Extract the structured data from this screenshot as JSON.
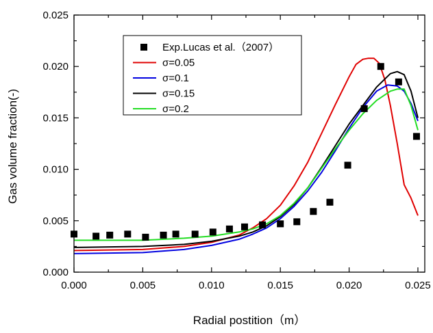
{
  "chart_data": {
    "type": "line",
    "title": "",
    "xlabel": "Radial postition（m）",
    "ylabel": "Gas volume fraction(-)",
    "xlim": [
      0.0,
      0.0255
    ],
    "ylim": [
      0.0,
      0.025
    ],
    "x_ticks": [
      "0.000",
      "0.005",
      "0.010",
      "0.015",
      "0.020",
      "0.025"
    ],
    "y_ticks": [
      "0.000",
      "0.005",
      "0.010",
      "0.015",
      "0.020",
      "0.025"
    ],
    "legend_position": "top-left",
    "scatter_series": {
      "name": "Exp.Lucas et al.（2007）",
      "color": "#000000",
      "x": [
        0.0,
        0.0016,
        0.0026,
        0.0039,
        0.0052,
        0.0065,
        0.0074,
        0.0088,
        0.0101,
        0.0113,
        0.0124,
        0.0137,
        0.015,
        0.0162,
        0.0174,
        0.0186,
        0.0199,
        0.0211,
        0.0223,
        0.0236,
        0.0249
      ],
      "y": [
        0.0037,
        0.0035,
        0.0036,
        0.0037,
        0.0034,
        0.0036,
        0.0037,
        0.0037,
        0.0039,
        0.0042,
        0.0044,
        0.0046,
        0.0047,
        0.0049,
        0.0059,
        0.0068,
        0.0104,
        0.0159,
        0.02,
        0.0185,
        0.0132
      ]
    },
    "series": [
      {
        "name": "σ=0.05",
        "color": "#e00000",
        "x": [
          0.0,
          0.005,
          0.008,
          0.01,
          0.012,
          0.013,
          0.014,
          0.015,
          0.016,
          0.017,
          0.018,
          0.019,
          0.02,
          0.0205,
          0.021,
          0.0214,
          0.0218,
          0.0222,
          0.0226,
          0.023,
          0.0235,
          0.024,
          0.0245,
          0.025
        ],
        "y": [
          0.0021,
          0.0022,
          0.0025,
          0.0029,
          0.0036,
          0.0043,
          0.0052,
          0.0065,
          0.0084,
          0.0107,
          0.0135,
          0.0163,
          0.019,
          0.0202,
          0.0207,
          0.0208,
          0.0208,
          0.0203,
          0.0187,
          0.0162,
          0.0125,
          0.0085,
          0.0072,
          0.0055
        ]
      },
      {
        "name": "σ=0.1",
        "color": "#0000e0",
        "x": [
          0.0,
          0.005,
          0.008,
          0.01,
          0.012,
          0.013,
          0.014,
          0.015,
          0.016,
          0.017,
          0.018,
          0.019,
          0.02,
          0.021,
          0.022,
          0.0228,
          0.0235,
          0.024,
          0.0245,
          0.025
        ],
        "y": [
          0.0018,
          0.0019,
          0.0022,
          0.0026,
          0.0032,
          0.0037,
          0.0043,
          0.0052,
          0.0064,
          0.0079,
          0.0097,
          0.0118,
          0.014,
          0.016,
          0.0176,
          0.0182,
          0.0181,
          0.0176,
          0.0164,
          0.0147
        ]
      },
      {
        "name": "σ=0.15",
        "color": "#000000",
        "x": [
          0.0,
          0.005,
          0.008,
          0.01,
          0.012,
          0.013,
          0.014,
          0.015,
          0.016,
          0.017,
          0.018,
          0.019,
          0.02,
          0.021,
          0.022,
          0.023,
          0.0235,
          0.024,
          0.0245,
          0.025
        ],
        "y": [
          0.0024,
          0.0025,
          0.0027,
          0.003,
          0.0035,
          0.0039,
          0.0045,
          0.0054,
          0.0066,
          0.0082,
          0.0102,
          0.0123,
          0.0144,
          0.0162,
          0.018,
          0.0193,
          0.0195,
          0.0192,
          0.0176,
          0.015
        ]
      },
      {
        "name": "σ=0.2",
        "color": "#22dd22",
        "x": [
          0.0,
          0.005,
          0.008,
          0.01,
          0.012,
          0.013,
          0.014,
          0.015,
          0.016,
          0.017,
          0.018,
          0.019,
          0.02,
          0.021,
          0.022,
          0.023,
          0.0235,
          0.024,
          0.0245,
          0.025
        ],
        "y": [
          0.0031,
          0.0031,
          0.0033,
          0.0035,
          0.0039,
          0.0042,
          0.0047,
          0.0055,
          0.0067,
          0.0082,
          0.0101,
          0.012,
          0.0138,
          0.0154,
          0.0167,
          0.0176,
          0.0178,
          0.0178,
          0.0162,
          0.0138
        ]
      }
    ]
  }
}
